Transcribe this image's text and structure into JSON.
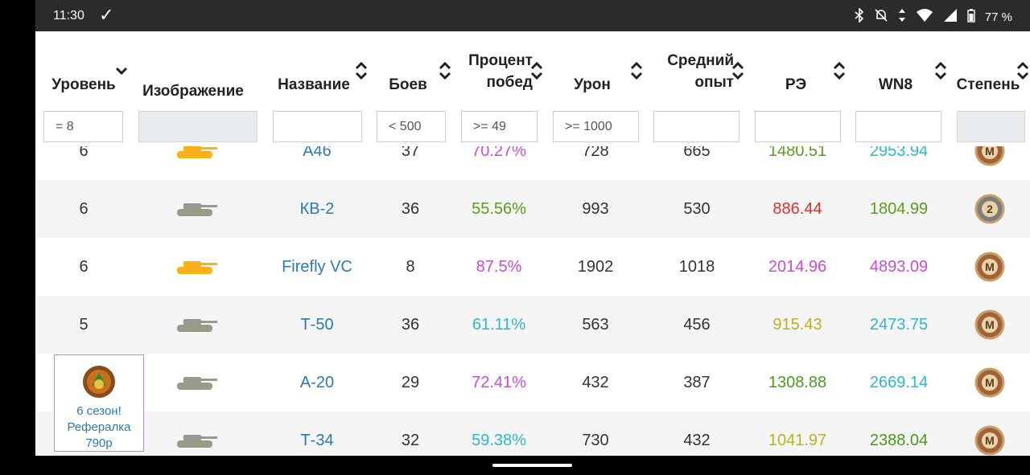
{
  "status": {
    "time": "11:30",
    "check_icon": "check-icon",
    "battery": "77 %",
    "icons": [
      "bluetooth-icon",
      "mute-icon",
      "data-icon",
      "wifi-icon",
      "signal-icon",
      "battery-icon"
    ]
  },
  "table": {
    "headers": {
      "level": "Уровень",
      "image": "Изображение",
      "name": "Название",
      "battles": "Боев",
      "winrate_1": "Процент",
      "winrate_2": "побед",
      "damage": "Урон",
      "xp_1": "Средний",
      "xp_2": "опыт",
      "re": "РЭ",
      "wn8": "WN8",
      "degree": "Степень"
    },
    "filters": {
      "level": "= 8",
      "battles": "< 500",
      "winrate": ">= 49",
      "damage": ">= 1000"
    },
    "rows": [
      {
        "level": "6",
        "tank_color": "#f7b21b",
        "name": "A46",
        "battles": "37",
        "winrate": "70.27%",
        "winrate_color": "#c94bd6",
        "damage": "728",
        "xp": "665",
        "re": "1480.51",
        "re_color": "#5a9e1a",
        "wn8": "2953.94",
        "wn8_color": "#2ab9c9",
        "badge": "M"
      },
      {
        "level": "6",
        "tank_color": "#9a9a8a",
        "name": "КВ-2",
        "battles": "36",
        "winrate": "55.56%",
        "winrate_color": "#5a9e1a",
        "damage": "993",
        "xp": "530",
        "re": "886.44",
        "re_color": "#e0302a",
        "wn8": "1804.99",
        "wn8_color": "#5a9e1a",
        "badge": "2"
      },
      {
        "level": "6",
        "tank_color": "#f7b21b",
        "name": "Firefly VC",
        "battles": "8",
        "winrate": "87.5%",
        "winrate_color": "#c94bd6",
        "damage": "1902",
        "xp": "1018",
        "re": "2014.96",
        "re_color": "#c94bd6",
        "wn8": "4893.09",
        "wn8_color": "#c94bd6",
        "badge": "M"
      },
      {
        "level": "5",
        "tank_color": "#9a9a8a",
        "name": "Т-50",
        "battles": "36",
        "winrate": "61.11%",
        "winrate_color": "#2ab9c9",
        "damage": "563",
        "xp": "456",
        "re": "915.43",
        "re_color": "#b9b31f",
        "wn8": "2473.75",
        "wn8_color": "#2ab9c9",
        "badge": "M"
      },
      {
        "level": "",
        "tank_color": "#9a9a8a",
        "name": "А-20",
        "battles": "29",
        "winrate": "72.41%",
        "winrate_color": "#c94bd6",
        "damage": "432",
        "xp": "387",
        "re": "1308.88",
        "re_color": "#4c9a1d",
        "wn8": "2669.14",
        "wn8_color": "#2ab9c9",
        "badge": "M"
      },
      {
        "level": "",
        "tank_color": "#9a9a8a",
        "name": "Т-34",
        "battles": "32",
        "winrate": "59.38%",
        "winrate_color": "#2ab9c9",
        "damage": "730",
        "xp": "432",
        "re": "1041.97",
        "re_color": "#b9b31f",
        "wn8": "2388.04",
        "wn8_color": "#4c9a1d",
        "badge": "M"
      }
    ]
  },
  "ad": {
    "line1": "6 сезон!",
    "line2": "Рефералка",
    "line3": "790р"
  }
}
